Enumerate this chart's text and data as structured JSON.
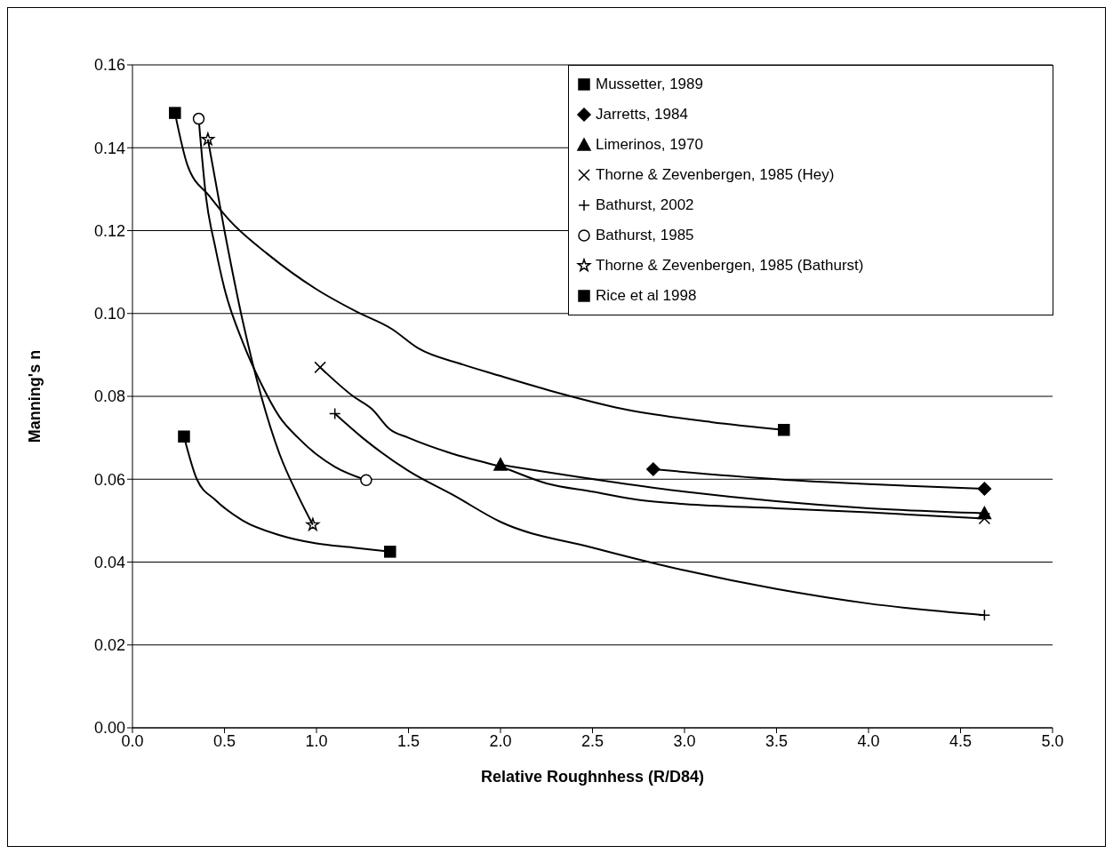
{
  "chart_data": {
    "type": "line",
    "xlabel": "Relative Roughnhess (R/D84)",
    "ylabel": "Manning's n",
    "xlim": [
      0,
      5
    ],
    "xticks": [
      {
        "value": 0,
        "label": "0.0"
      },
      {
        "value": 0.5,
        "label": "0.5"
      },
      {
        "value": 1,
        "label": "1.0"
      },
      {
        "value": 1.5,
        "label": "1.5"
      },
      {
        "value": 2,
        "label": "2.0"
      },
      {
        "value": 2.5,
        "label": "2.5"
      },
      {
        "value": 3,
        "label": "3.0"
      },
      {
        "value": 3.5,
        "label": "3.5"
      },
      {
        "value": 4,
        "label": "4.0"
      },
      {
        "value": 4.5,
        "label": "4.5"
      },
      {
        "value": 5,
        "label": "5.0"
      }
    ],
    "ylim": [
      0,
      0.16
    ],
    "yticks": [
      {
        "value": 0,
        "label": "0.00"
      },
      {
        "value": 0.02,
        "label": "0.02"
      },
      {
        "value": 0.04,
        "label": "0.04"
      },
      {
        "value": 0.06,
        "label": "0.06"
      },
      {
        "value": 0.08,
        "label": "0.08"
      },
      {
        "value": 0.1,
        "label": "0.10"
      },
      {
        "value": 0.12,
        "label": "0.12"
      },
      {
        "value": 0.14,
        "label": "0.14"
      },
      {
        "value": 0.16,
        "label": "0.16"
      }
    ],
    "grid": "y",
    "legend": "top right",
    "line_style": "solid",
    "series": [
      {
        "color": "#000000",
        "marker": "none",
        "x": [
          0.231,
          0.299,
          0.419,
          0.54,
          0.733,
          0.998,
          1.215,
          1.408,
          1.553,
          1.794,
          1.986,
          2.276,
          2.662,
          3.144,
          3.54
        ],
        "values": [
          0.1484,
          0.1358,
          0.1283,
          0.1219,
          0.1144,
          0.1059,
          0.1005,
          0.0963,
          0.0916,
          0.0877,
          0.0851,
          0.0813,
          0.077,
          0.0738,
          0.0719
        ]
      },
      {
        "color": "#000000",
        "marker": "none",
        "x": [
          2.83,
          3.5,
          4.0,
          4.63
        ],
        "values": [
          0.0624,
          0.06,
          0.0588,
          0.0577
        ]
      },
      {
        "color": "#000000",
        "marker": "none",
        "x": [
          2.0,
          3.0,
          4.0,
          4.63
        ],
        "values": [
          0.0635,
          0.057,
          0.053,
          0.0518
        ]
      },
      {
        "color": "#000000",
        "marker": "none",
        "x": [
          1.02,
          1.2,
          1.3,
          1.4,
          1.5,
          1.75,
          2.0,
          2.25,
          2.5,
          2.75,
          3.0,
          3.5,
          4.0,
          4.63
        ],
        "values": [
          0.087,
          0.08,
          0.077,
          0.072,
          0.07,
          0.066,
          0.063,
          0.059,
          0.057,
          0.055,
          0.054,
          0.053,
          0.052,
          0.0505
        ]
      },
      {
        "color": "#000000",
        "marker": "none",
        "x": [
          1.1,
          1.25,
          1.5,
          1.75,
          2.0,
          2.5,
          3.0,
          3.5,
          4.0,
          4.63
        ],
        "values": [
          0.0758,
          0.07,
          0.062,
          0.056,
          0.0497,
          0.0435,
          0.038,
          0.0335,
          0.03,
          0.0272
        ]
      },
      {
        "color": "#000000",
        "marker": "none",
        "x": [
          0.36,
          0.4,
          0.45,
          0.5,
          0.6,
          0.7,
          0.8,
          0.9,
          1.0,
          1.1,
          1.27
        ],
        "values": [
          0.147,
          0.128,
          0.116,
          0.106,
          0.093,
          0.083,
          0.075,
          0.07,
          0.066,
          0.063,
          0.0598
        ]
      },
      {
        "color": "#000000",
        "marker": "none",
        "x": [
          0.41,
          0.5,
          0.6,
          0.7,
          0.8,
          0.9,
          0.98
        ],
        "values": [
          0.142,
          0.12,
          0.098,
          0.08,
          0.066,
          0.056,
          0.049
        ]
      },
      {
        "color": "#000000",
        "marker": "none",
        "x": [
          0.28,
          0.35,
          0.45,
          0.6,
          0.8,
          1.0,
          1.2,
          1.4
        ],
        "values": [
          0.0703,
          0.06,
          0.055,
          0.05,
          0.0465,
          0.0445,
          0.0435,
          0.0425
        ]
      },
      {
        "type": "scatter",
        "name": "Mussetter, 1989",
        "color": "#000000",
        "marker": "square",
        "x": [
          0.231,
          3.54
        ],
        "values": [
          0.1484,
          0.0719
        ]
      },
      {
        "type": "scatter",
        "name": "Jarretts, 1984",
        "color": "#000000",
        "marker": "diamond",
        "x": [
          2.83,
          4.63
        ],
        "values": [
          0.0624,
          0.0577
        ]
      },
      {
        "type": "scatter",
        "name": "Limerinos, 1970",
        "color": "#000000",
        "marker": "triangle",
        "x": [
          2.0,
          4.63
        ],
        "values": [
          0.0635,
          0.0518
        ]
      },
      {
        "type": "scatter",
        "name": "Thorne & Zevenbergen, 1985  (Hey)",
        "color": "#000000",
        "marker": "cross",
        "x": [
          1.02,
          4.63
        ],
        "values": [
          0.087,
          0.0505
        ]
      },
      {
        "type": "scatter",
        "name": "Bathurst, 2002",
        "color": "#000000",
        "marker": "cross",
        "x": [
          1.1,
          4.63
        ],
        "values": [
          0.0758,
          0.0272
        ]
      },
      {
        "type": "scatter",
        "name": "Bathurst, 1985",
        "color": "#000000",
        "marker": "circle",
        "x": [
          0.36,
          1.27
        ],
        "values": [
          0.147,
          0.0598
        ]
      },
      {
        "type": "scatter",
        "name": "Thorne & Zevenbergen, 1985 (Bathurst)",
        "color": "#000000",
        "marker": "star",
        "x": [
          0.41,
          0.98
        ],
        "values": [
          0.142,
          0.049
        ]
      },
      {
        "type": "scatter",
        "name": "Rice et al 1998",
        "color": "#000000",
        "marker": "square",
        "x": [
          0.28,
          1.4
        ],
        "values": [
          0.0703,
          0.0425
        ]
      }
    ]
  }
}
